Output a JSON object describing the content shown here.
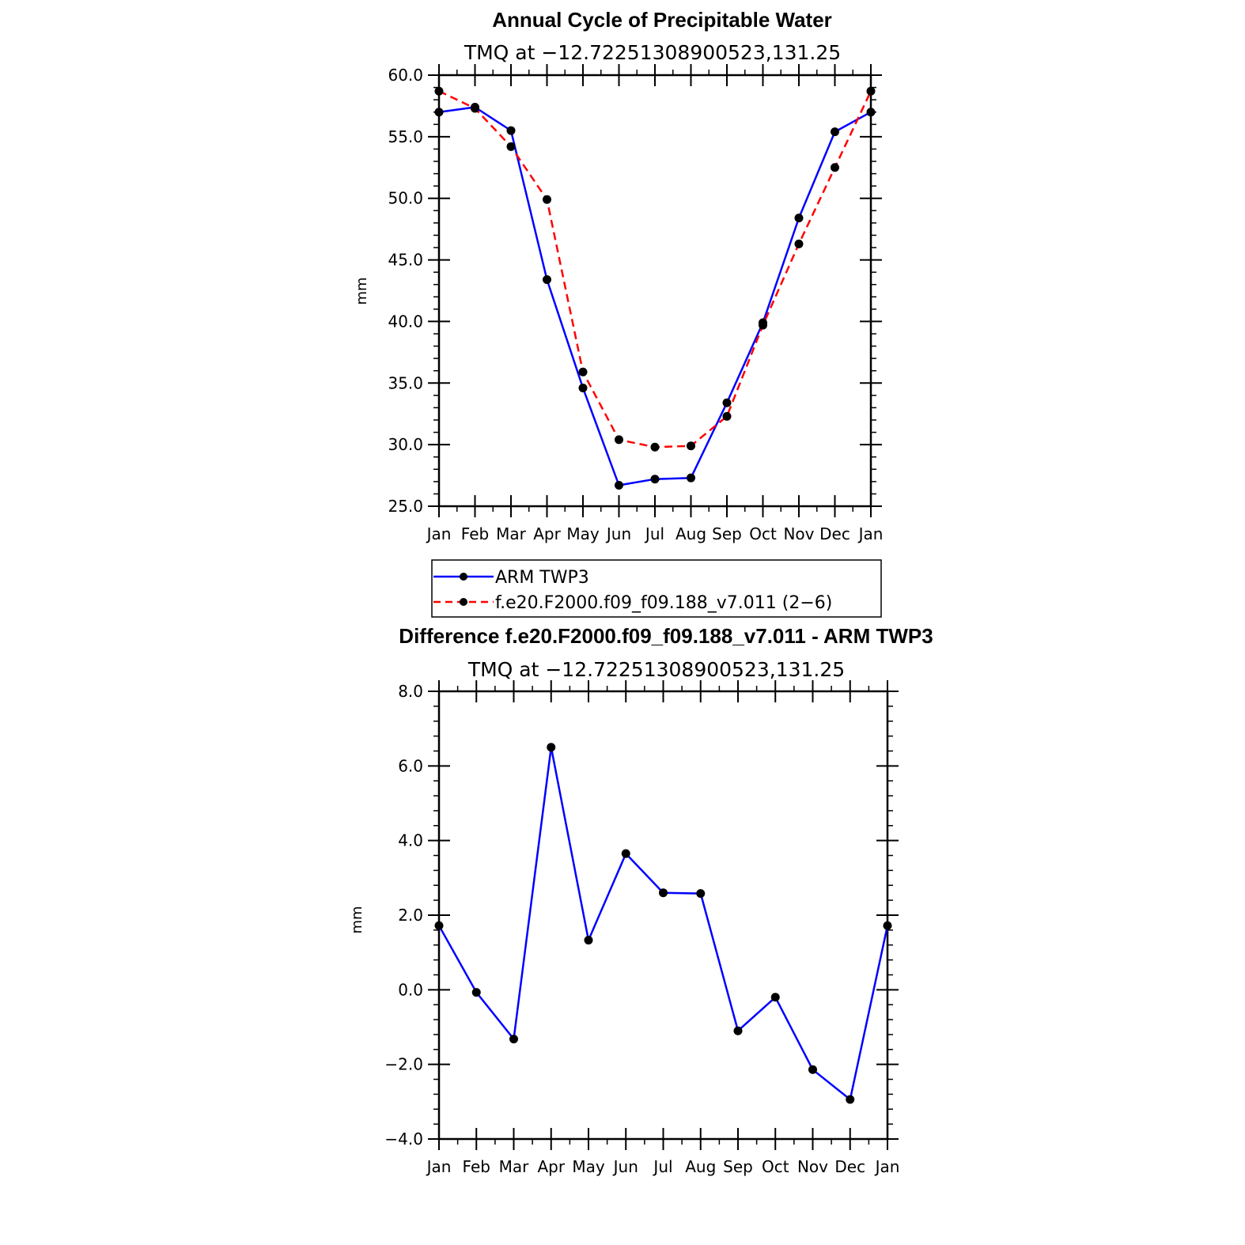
{
  "chart_data": [
    {
      "type": "line",
      "title": "Annual Cycle of Precipitable Water",
      "subtitle": "TMQ at −12.72251308900523,131.25",
      "xlabel": "",
      "ylabel": "mm",
      "categories": [
        "Jan",
        "Feb",
        "Mar",
        "Apr",
        "May",
        "Jun",
        "Jul",
        "Aug",
        "Sep",
        "Oct",
        "Nov",
        "Dec",
        "Jan"
      ],
      "ylim": [
        25.0,
        60.0
      ],
      "yticks": [
        "25.0",
        "30.0",
        "35.0",
        "40.0",
        "45.0",
        "50.0",
        "55.0",
        "60.0"
      ],
      "grid": false,
      "legend": "below",
      "series": [
        {
          "name": "ARM TWP3",
          "color": "#0000ff",
          "dash": "solid",
          "values": [
            57.0,
            57.4,
            55.5,
            43.4,
            34.6,
            26.7,
            27.2,
            27.3,
            33.4,
            39.9,
            48.4,
            55.4,
            57.0
          ]
        },
        {
          "name": "f.e20.F2000.f09_f09.188_v7.011 (2−6)",
          "color": "#ff0000",
          "dash": "dashed",
          "values": [
            58.7,
            57.3,
            54.2,
            49.9,
            35.9,
            30.4,
            29.8,
            29.9,
            32.3,
            39.7,
            46.3,
            52.5,
            58.7
          ]
        }
      ]
    },
    {
      "type": "line",
      "title": "Difference f.e20.F2000.f09_f09.188_v7.011 - ARM TWP3",
      "subtitle": "TMQ at −12.72251308900523,131.25",
      "xlabel": "",
      "ylabel": "mm",
      "categories": [
        "Jan",
        "Feb",
        "Mar",
        "Apr",
        "May",
        "Jun",
        "Jul",
        "Aug",
        "Sep",
        "Oct",
        "Nov",
        "Dec",
        "Jan"
      ],
      "ylim": [
        -4.0,
        8.0
      ],
      "yticks": [
        "−4.0",
        "−2.0",
        "0.0",
        "2.0",
        "4.0",
        "6.0",
        "8.0"
      ],
      "grid": false,
      "series": [
        {
          "color": "#0000ff",
          "dash": "solid",
          "values": [
            1.72,
            -0.07,
            -1.32,
            6.5,
            1.33,
            3.65,
            2.6,
            2.58,
            -1.1,
            -0.2,
            -2.14,
            -2.94,
            1.72
          ]
        }
      ]
    }
  ]
}
